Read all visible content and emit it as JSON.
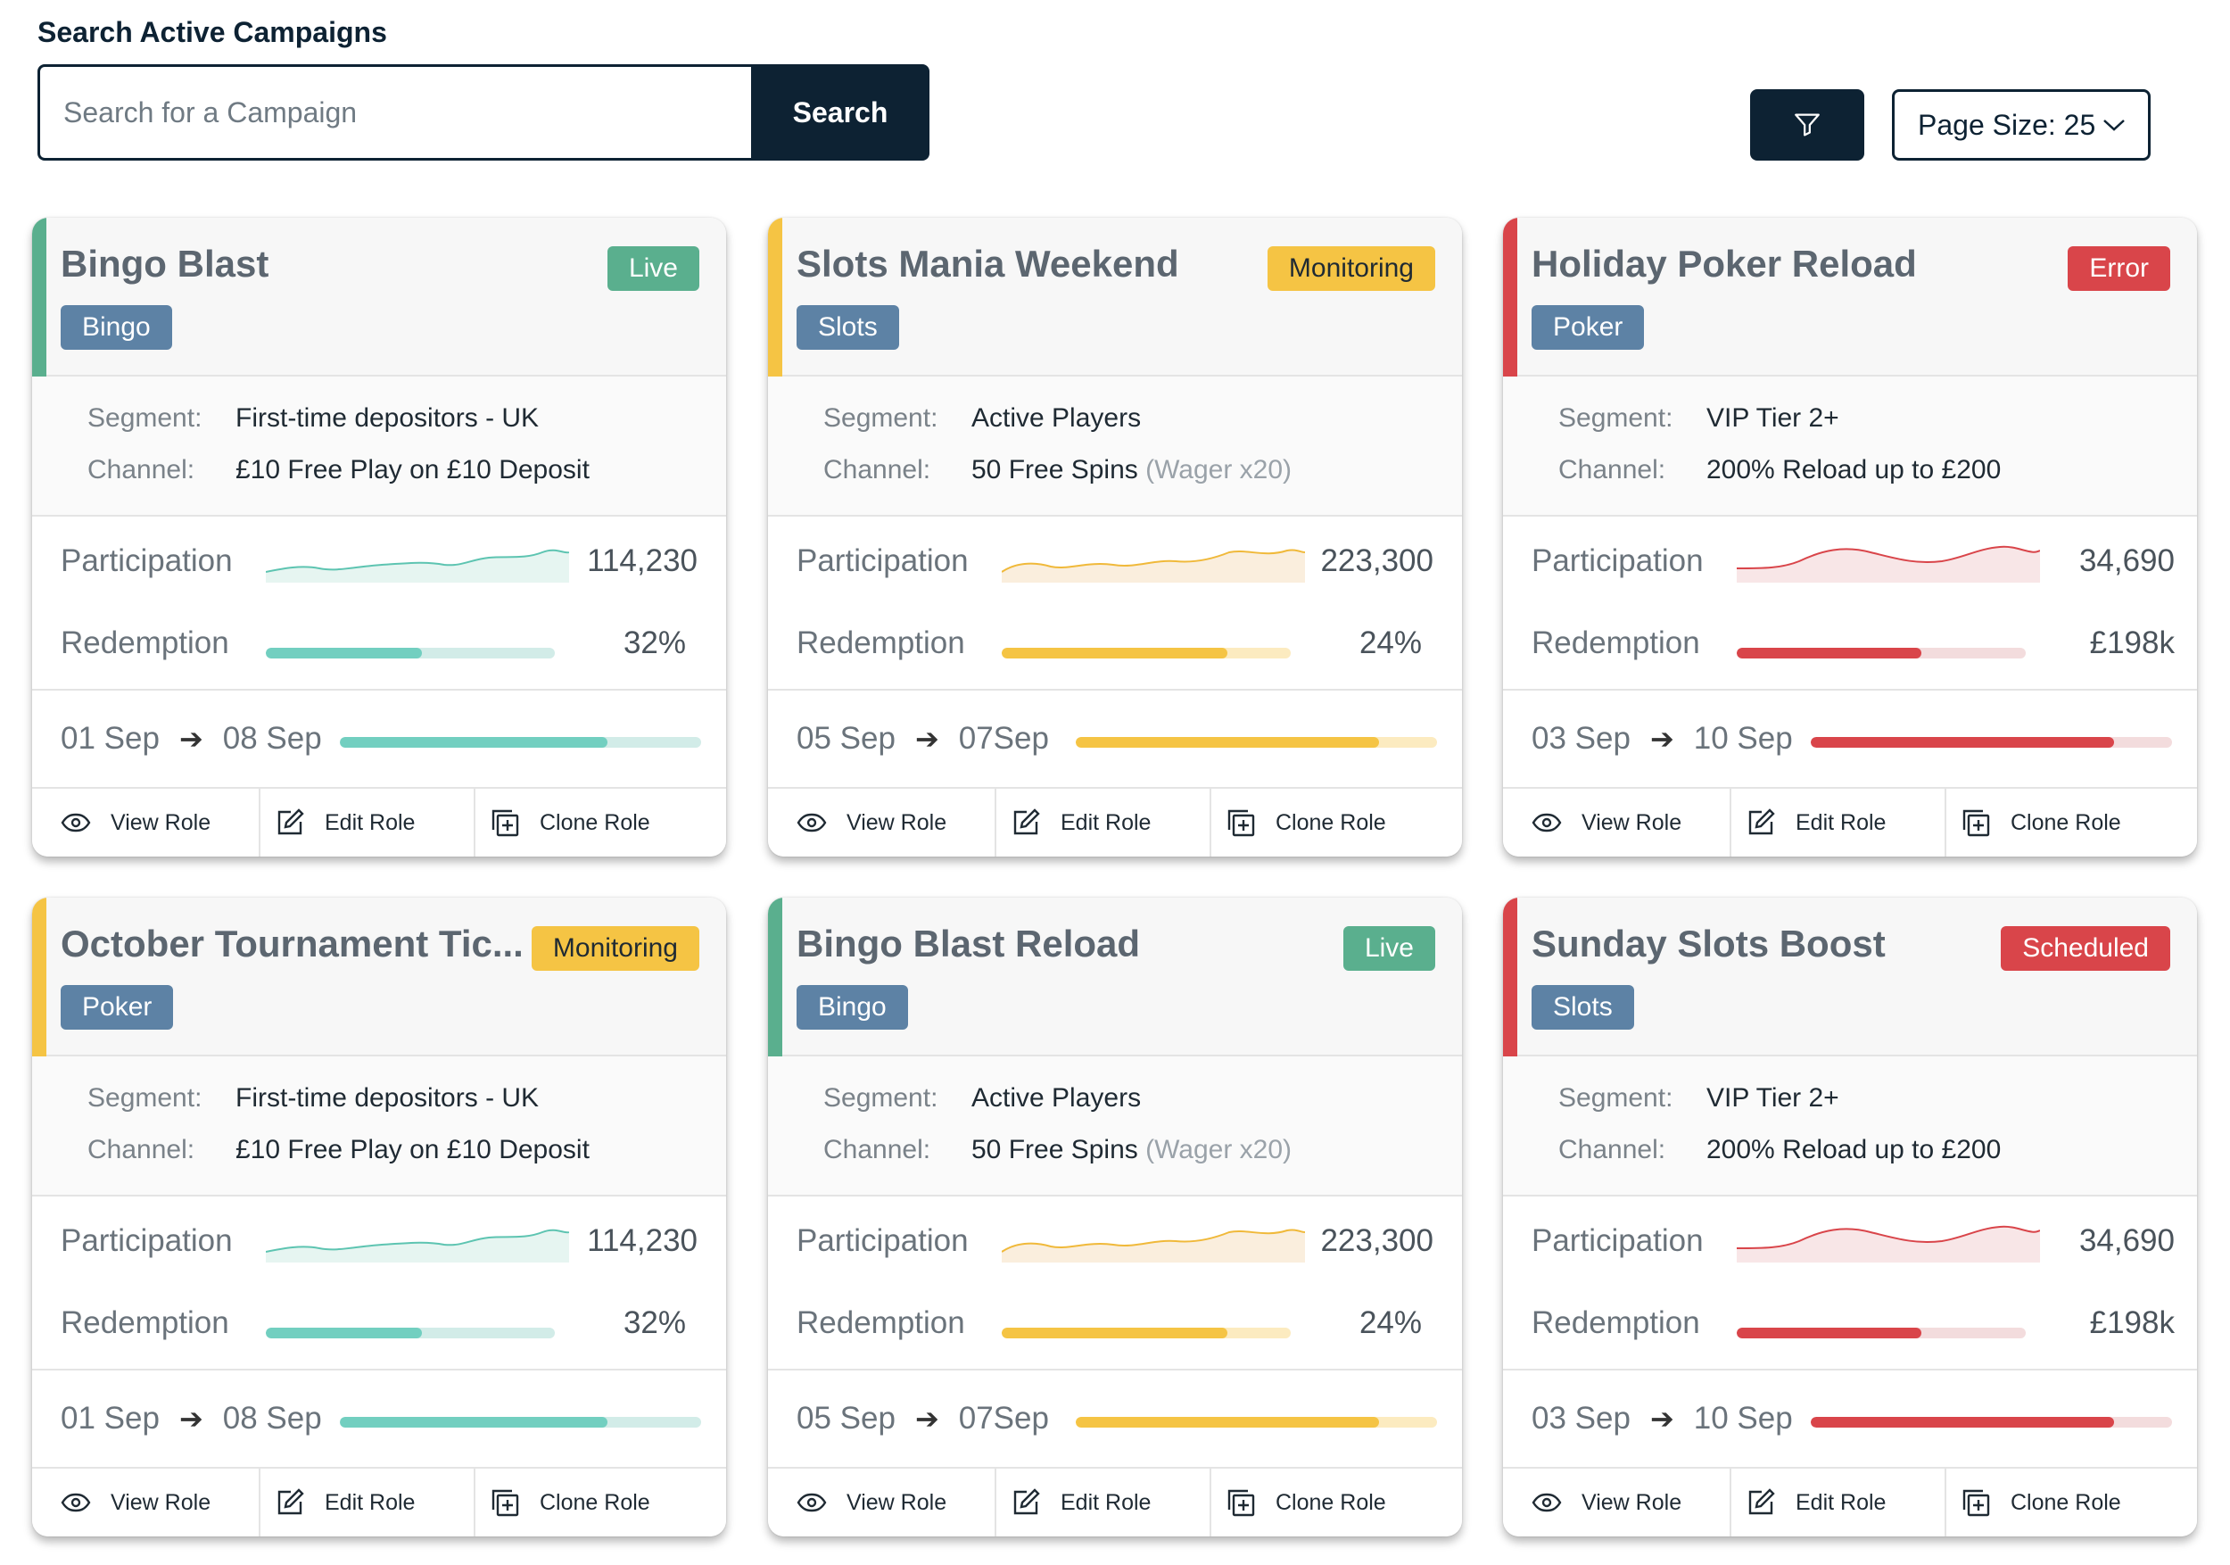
{
  "search": {
    "title": "Search Active Campaigns",
    "placeholder": "Search for a Campaign",
    "button_label": "Search"
  },
  "toolbar": {
    "filter_icon": "filter-icon",
    "page_size_label": "Page Size: 25"
  },
  "labels": {
    "segment": "Segment:",
    "channel": "Channel:",
    "participation": "Participation",
    "redemption": "Redemption",
    "arrow": "➔",
    "view_role": "View Role",
    "edit_role": "Edit Role",
    "clone_role": "Clone Role"
  },
  "colors": {
    "live": "#5aaf8e",
    "monitoring": "#f5c444",
    "error": "#d9454a",
    "category": "#5d82a5",
    "teal": "#72cfc0",
    "teal_track": "#d2ece8",
    "yellow": "#f5c444",
    "yellow_track": "#fcebc0",
    "red": "#d9454a",
    "red_track": "#f3dcdd"
  },
  "campaigns": [
    {
      "title": "Bingo Blast",
      "status": "Live",
      "status_color": "#5aaf8e",
      "accent": "#5aaf8e",
      "category": "Bingo",
      "segment": "First-time depositors - UK",
      "channel": "£10 Free Play on £10 Deposit",
      "channel_note": "",
      "participation": "114,230",
      "redemption": "32%",
      "redemption_fraction": 0.54,
      "date_start": "01 Sep",
      "date_end": "08 Sep",
      "date_progress": 0.74,
      "theme": "teal",
      "status_text_color": "#ffffff"
    },
    {
      "title": "Slots Mania Weekend",
      "status": "Monitoring",
      "status_color": "#f5c444",
      "accent": "#f5c444",
      "category": "Slots",
      "segment": "Active Players",
      "channel": "50 Free Spins ",
      "channel_note": "(Wager x20)",
      "participation": "223,300",
      "redemption": "24%",
      "redemption_fraction": 0.78,
      "date_start": "05 Sep",
      "date_end": "07Sep",
      "date_progress": 0.84,
      "theme": "yellow",
      "status_text_color": "#1f2a33"
    },
    {
      "title": "Holiday Poker Reload",
      "status": "Error",
      "status_color": "#d9454a",
      "accent": "#d9454a",
      "category": "Poker",
      "segment": "VIP Tier 2+",
      "channel": "200% Reload up to £200",
      "channel_note": "",
      "participation": "34,690",
      "redemption": "£198k",
      "redemption_fraction": 0.64,
      "date_start": "03 Sep",
      "date_end": "10 Sep",
      "date_progress": 0.84,
      "theme": "red",
      "status_text_color": "#ffffff"
    },
    {
      "title": "October Tournament Tic...",
      "status": "Monitoring",
      "status_color": "#f5c444",
      "accent": "#f5c444",
      "category": "Poker",
      "segment": "First-time depositors - UK",
      "channel": "£10 Free Play on £10 Deposit",
      "channel_note": "",
      "participation": "114,230",
      "redemption": "32%",
      "redemption_fraction": 0.54,
      "date_start": "01 Sep",
      "date_end": "08 Sep",
      "date_progress": 0.74,
      "theme": "teal",
      "status_text_color": "#1f2a33"
    },
    {
      "title": "Bingo Blast Reload",
      "status": "Live",
      "status_color": "#5aaf8e",
      "accent": "#5aaf8e",
      "category": "Bingo",
      "segment": "Active Players",
      "channel": "50 Free Spins ",
      "channel_note": "(Wager x20)",
      "participation": "223,300",
      "redemption": "24%",
      "redemption_fraction": 0.78,
      "date_start": "05 Sep",
      "date_end": "07Sep",
      "date_progress": 0.84,
      "theme": "yellow",
      "status_text_color": "#ffffff"
    },
    {
      "title": "Sunday Slots Boost",
      "status": "Scheduled",
      "status_color": "#d9454a",
      "accent": "#d9454a",
      "category": "Slots",
      "segment": "VIP Tier 2+",
      "channel": "200% Reload up to £200",
      "channel_note": "",
      "participation": "34,690",
      "redemption": "£198k",
      "redemption_fraction": 0.64,
      "date_start": "03 Sep",
      "date_end": "10 Sep",
      "date_progress": 0.84,
      "theme": "red",
      "status_text_color": "#ffffff"
    }
  ]
}
